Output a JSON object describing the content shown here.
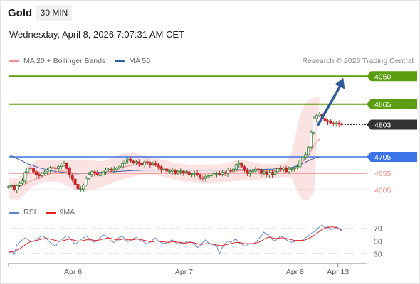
{
  "header": {
    "title": "Gold",
    "timeframe": "30 MIN",
    "datetime": "Wednesday, April 8, 2026 7:07:31 AM CET"
  },
  "legend_main": [
    {
      "label": "MA 20 + Bollinger Bands",
      "color": "#f28c8c"
    },
    {
      "label": "MA 50",
      "color": "#2f5d9c"
    }
  ],
  "copyright": "Research © 2026 Trading Central",
  "legend_rsi": [
    {
      "label": "RSI",
      "color": "#5b7fd6"
    },
    {
      "label": "9MA",
      "color": "#e02020"
    }
  ],
  "colors": {
    "up": "#2e7d32",
    "down": "#c62828",
    "green_level": "#5a9e0f",
    "blue_level": "#3b74e8",
    "red_level": "#f28c8c",
    "band": "#fbe3e3",
    "ma50": "#3b5ea8",
    "ma20": "#f28c8c",
    "rsi": "#5b7fd6",
    "rsi_ma": "#e02020",
    "arrow": "#2f5d9c",
    "last_price_bg": "#333333"
  },
  "chart_data": [
    {
      "type": "candlestick",
      "price_range": [
        4565,
        4985
      ],
      "x_range": [
        0,
        100
      ],
      "x_ticks": [
        {
          "pos": 18,
          "label": "Apr 6"
        },
        {
          "pos": 49,
          "label": "Apr 7"
        },
        {
          "pos": 80,
          "label": "Apr 8"
        },
        {
          "pos": 92,
          "label": "Apr 13"
        }
      ],
      "levels": [
        {
          "value": 4950,
          "label": "4950",
          "kind": "resistance"
        },
        {
          "value": 4865,
          "label": "4865",
          "kind": "resistance"
        },
        {
          "value": 4803,
          "label": "4803",
          "kind": "last"
        },
        {
          "value": 4705,
          "label": "4705",
          "kind": "pivot"
        },
        {
          "value": 4655,
          "label": "4655",
          "kind": "support"
        },
        {
          "value": 4605,
          "label": "4605",
          "kind": "support"
        }
      ],
      "projection": {
        "from": [
          86.5,
          4803
        ],
        "to": [
          93.5,
          4945
        ]
      },
      "close": [
        4615,
        4618,
        4605,
        4618,
        4625,
        4632,
        4658,
        4672,
        4670,
        4660,
        4652,
        4648,
        4655,
        4660,
        4665,
        4673,
        4672,
        4670,
        4676,
        4680,
        4685,
        4670,
        4650,
        4638,
        4622,
        4608,
        4608,
        4620,
        4640,
        4652,
        4660,
        4656,
        4650,
        4650,
        4660,
        4665,
        4668,
        4665,
        4668,
        4672,
        4675,
        4685,
        4695,
        4698,
        4692,
        4688,
        4690,
        4685,
        4680,
        4690,
        4688,
        4682,
        4685,
        4682,
        4675,
        4668,
        4668,
        4662,
        4662,
        4665,
        4655,
        4660,
        4662,
        4658,
        4660,
        4652,
        4654,
        4656,
        4650,
        4642,
        4640,
        4645,
        4648,
        4650,
        4654,
        4656,
        4652,
        4658,
        4655,
        4665,
        4662,
        4668,
        4682,
        4685,
        4675,
        4665,
        4655,
        4660,
        4662,
        4668,
        4665,
        4655,
        4660,
        4650,
        4658,
        4652,
        4660,
        4670,
        4668,
        4672,
        4660,
        4668,
        4670,
        4672,
        4675,
        4695,
        4705,
        4712,
        4735,
        4780,
        4820,
        4830,
        4835,
        4822,
        4815,
        4812,
        4808,
        4805,
        4808,
        4806,
        4803
      ],
      "ma20": [
        4618,
        4616,
        4614,
        4614,
        4615,
        4618,
        4622,
        4627,
        4632,
        4636,
        4639,
        4642,
        4645,
        4648,
        4651,
        4654,
        4657,
        4659,
        4661,
        4662,
        4662,
        4661,
        4659,
        4656,
        4653,
        4651,
        4650,
        4650,
        4650,
        4650,
        4650,
        4651,
        4653,
        4654,
        4656,
        4658,
        4660,
        4662,
        4664,
        4667,
        4670,
        4673,
        4675,
        4677,
        4679,
        4680,
        4681,
        4682,
        4682,
        4682,
        4681,
        4680,
        4679,
        4677,
        4675,
        4673,
        4671,
        4669,
        4667,
        4665,
        4662,
        4660,
        4658,
        4657,
        4656,
        4655,
        4654,
        4654,
        4653,
        4652,
        4651,
        4650,
        4650,
        4650,
        4651,
        4652,
        4653,
        4654,
        4656,
        4658,
        4660,
        4661,
        4662,
        4663,
        4663,
        4663,
        4663,
        4663,
        4664,
        4665,
        4665,
        4665,
        4664,
        4664,
        4663,
        4663,
        4663,
        4663,
        4664,
        4664,
        4664,
        4665,
        4666,
        4668,
        4672,
        4680,
        4690,
        4700,
        4712,
        4725,
        4738,
        4750,
        4760
      ],
      "band_upper": [
        4640,
        4640,
        4640,
        4641,
        4643,
        4650,
        4660,
        4672,
        4684,
        4690,
        4694,
        4696,
        4697,
        4697,
        4697,
        4697,
        4697,
        4697,
        4697,
        4697,
        4697,
        4697,
        4697,
        4697,
        4697,
        4697,
        4697,
        4697,
        4696,
        4695,
        4694,
        4693,
        4692,
        4692,
        4693,
        4694,
        4697,
        4700,
        4704,
        4708,
        4712,
        4715,
        4717,
        4718,
        4718,
        4717,
        4715,
        4713,
        4711,
        4709,
        4707,
        4705,
        4703,
        4701,
        4699,
        4697,
        4695,
        4693,
        4691,
        4689,
        4687,
        4686,
        4685,
        4684,
        4683,
        4682,
        4682,
        4682,
        4682,
        4682,
        4682,
        4682,
        4682,
        4682,
        4682,
        4682,
        4683,
        4684,
        4686,
        4688,
        4690,
        4692,
        4694,
        4695,
        4695,
        4694,
        4692,
        4690,
        4688,
        4686,
        4685,
        4684,
        4683,
        4683,
        4683,
        4683,
        4683,
        4684,
        4685,
        4687,
        4690,
        4700,
        4720,
        4755,
        4795,
        4830,
        4855,
        4870,
        4878,
        4882,
        4885,
        4886,
        4886
      ],
      "band_lower": [
        4580,
        4578,
        4576,
        4576,
        4578,
        4586,
        4594,
        4602,
        4610,
        4616,
        4620,
        4624,
        4626,
        4628,
        4629,
        4630,
        4631,
        4630,
        4628,
        4625,
        4622,
        4618,
        4614,
        4610,
        4606,
        4604,
        4603,
        4603,
        4603,
        4604,
        4606,
        4608,
        4610,
        4613,
        4616,
        4619,
        4622,
        4625,
        4628,
        4631,
        4634,
        4637,
        4639,
        4641,
        4643,
        4645,
        4647,
        4649,
        4651,
        4652,
        4653,
        4652,
        4651,
        4650,
        4648,
        4646,
        4644,
        4642,
        4640,
        4638,
        4636,
        4634,
        4632,
        4631,
        4630,
        4629,
        4628,
        4627,
        4626,
        4625,
        4624,
        4624,
        4624,
        4624,
        4625,
        4626,
        4627,
        4628,
        4629,
        4630,
        4631,
        4632,
        4632,
        4632,
        4633,
        4633,
        4634,
        4634,
        4635,
        4636,
        4637,
        4638,
        4638,
        4639,
        4640,
        4641,
        4642,
        4643,
        4643,
        4644,
        4644,
        4645,
        4640,
        4620,
        4600,
        4585,
        4575,
        4572,
        4575,
        4585,
        4600
      ],
      "ma50": [
        4712,
        4708,
        4704,
        4700,
        4696,
        4692,
        4688,
        4684,
        4681,
        4678,
        4675,
        4672,
        4670,
        4668,
        4666,
        4664,
        4662,
        4661,
        4660,
        4659,
        4658,
        4657,
        4656,
        4656,
        4656,
        4656,
        4656,
        4656,
        4656,
        4656,
        4657,
        4657,
        4658,
        4658,
        4659,
        4659,
        4660,
        4660,
        4660,
        4661,
        4661,
        4662,
        4662,
        4663,
        4663,
        4664,
        4664,
        4664,
        4665,
        4665,
        4665,
        4665,
        4665,
        4665,
        4665,
        4665,
        4665,
        4665,
        4665,
        4665,
        4665,
        4665,
        4665,
        4665,
        4665,
        4665,
        4665,
        4665,
        4665,
        4665,
        4665,
        4665,
        4665,
        4665,
        4665,
        4665,
        4665,
        4665,
        4665,
        4665,
        4665,
        4665,
        4666,
        4666,
        4666,
        4666,
        4666,
        4666,
        4666,
        4667,
        4667,
        4667,
        4667,
        4668,
        4668,
        4668,
        4669,
        4669,
        4670,
        4670,
        4671,
        4672,
        4673,
        4675,
        4678,
        4681,
        4685,
        4689,
        4693,
        4697,
        4700,
        4703,
        4705
      ]
    },
    {
      "type": "line",
      "name": "RSI",
      "y_range": [
        15,
        85
      ],
      "y_ticks": [
        70,
        50,
        30
      ],
      "rsi": [
        30,
        35,
        28,
        45,
        48,
        52,
        55,
        52,
        50,
        49,
        53,
        55,
        58,
        56,
        52,
        48,
        45,
        42,
        48,
        52,
        55,
        58,
        55,
        50,
        45,
        48,
        52,
        55,
        58,
        54,
        51,
        48,
        52,
        55,
        60,
        58,
        55,
        50,
        48,
        52,
        56,
        58,
        52,
        49,
        51,
        54,
        56,
        52,
        50,
        48,
        45,
        48,
        52,
        55,
        50,
        48,
        46,
        47,
        50,
        52,
        48,
        45,
        47,
        46,
        49,
        50,
        48,
        45,
        40,
        43,
        48,
        52,
        47,
        45,
        44,
        42,
        30,
        40,
        46,
        50,
        48,
        51,
        53,
        47,
        45,
        42,
        44,
        46,
        45,
        48,
        53,
        58,
        64,
        60,
        58,
        52,
        50,
        54,
        58,
        55,
        52,
        50,
        48,
        49,
        51,
        50,
        52,
        55,
        58,
        62,
        64,
        68,
        72,
        75,
        70,
        73,
        68,
        69,
        72,
        70,
        65
      ],
      "rsi_ma": [
        33,
        33,
        34,
        36,
        38,
        41,
        44,
        47,
        49,
        50,
        51,
        52,
        53,
        54,
        54,
        53,
        52,
        51,
        50,
        50,
        51,
        52,
        53,
        52,
        51,
        50,
        50,
        51,
        52,
        52,
        52,
        51,
        51,
        52,
        53,
        54,
        55,
        54,
        53,
        52,
        52,
        53,
        53,
        52,
        52,
        52,
        53,
        53,
        52,
        51,
        50,
        49,
        49,
        50,
        50,
        49,
        49,
        48,
        48,
        49,
        49,
        48,
        48,
        47,
        47,
        48,
        48,
        47,
        46,
        45,
        45,
        46,
        46,
        46,
        45,
        44,
        43,
        43,
        44,
        45,
        46,
        47,
        48,
        48,
        47,
        46,
        46,
        46,
        46,
        47,
        48,
        50,
        53,
        55,
        56,
        55,
        54,
        54,
        55,
        55,
        54,
        53,
        52,
        51,
        51,
        51,
        51,
        52,
        54,
        56,
        59,
        62,
        65,
        68,
        70,
        71,
        72,
        72,
        71,
        69,
        67
      ]
    }
  ]
}
